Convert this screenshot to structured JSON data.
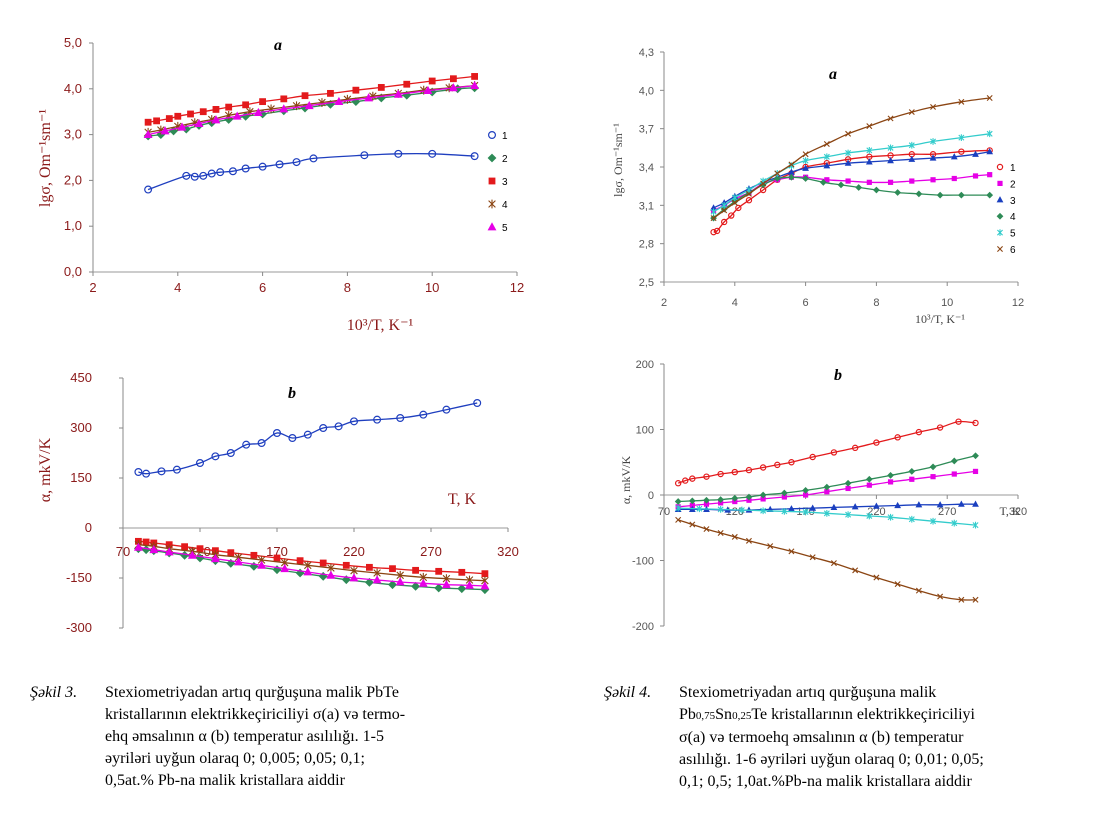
{
  "chart_data": [
    {
      "id": "fig3a",
      "type": "scatter",
      "panel": "a",
      "ylabel": "lgσ, Om⁻¹sm⁻¹",
      "xlabel": "10³/T, K⁻¹",
      "xlim": [
        2,
        12
      ],
      "ylim": [
        0,
        5
      ],
      "xticks": [
        "2",
        "4",
        "6",
        "8",
        "10",
        "12"
      ],
      "yticks": [
        "0,0",
        "1,0",
        "2,0",
        "3,0",
        "4,0",
        "5,0"
      ],
      "legend_position": "right",
      "series": [
        {
          "name": "1",
          "color": "#1f3fbf",
          "marker": "circle-open",
          "x": [
            3.3,
            4.2,
            4.4,
            4.6,
            4.8,
            5.0,
            5.3,
            5.6,
            6.0,
            6.4,
            6.8,
            7.2,
            8.4,
            9.2,
            10.0,
            11.0
          ],
          "y": [
            1.8,
            2.1,
            2.08,
            2.1,
            2.15,
            2.18,
            2.2,
            2.26,
            2.3,
            2.35,
            2.4,
            2.48,
            2.55,
            2.58,
            2.58,
            2.53
          ]
        },
        {
          "name": "2",
          "color": "#2e8b57",
          "marker": "diamond",
          "x": [
            3.3,
            3.6,
            3.9,
            4.2,
            4.5,
            4.8,
            5.2,
            5.6,
            6.0,
            6.5,
            7.0,
            7.6,
            8.2,
            8.8,
            9.4,
            10.0,
            10.6,
            11.0
          ],
          "y": [
            2.97,
            3.0,
            3.08,
            3.12,
            3.2,
            3.26,
            3.33,
            3.4,
            3.45,
            3.52,
            3.58,
            3.66,
            3.72,
            3.8,
            3.86,
            3.93,
            4.0,
            4.02
          ]
        },
        {
          "name": "3",
          "color": "#e31a1c",
          "marker": "square",
          "x": [
            3.3,
            3.5,
            3.8,
            4.0,
            4.3,
            4.6,
            4.9,
            5.2,
            5.6,
            6.0,
            6.5,
            7.0,
            7.6,
            8.2,
            8.8,
            9.4,
            10.0,
            10.5,
            11.0
          ],
          "y": [
            3.27,
            3.3,
            3.35,
            3.4,
            3.45,
            3.5,
            3.55,
            3.6,
            3.65,
            3.72,
            3.78,
            3.85,
            3.9,
            3.97,
            4.03,
            4.1,
            4.17,
            4.22,
            4.27
          ]
        },
        {
          "name": "4",
          "color": "#8b4513",
          "marker": "asterisk",
          "x": [
            3.3,
            3.6,
            4.0,
            4.4,
            4.8,
            5.2,
            5.7,
            6.2,
            6.8,
            7.4,
            8.0,
            8.6,
            9.2,
            9.8,
            10.4,
            11.0
          ],
          "y": [
            3.05,
            3.1,
            3.18,
            3.26,
            3.33,
            3.42,
            3.5,
            3.56,
            3.63,
            3.7,
            3.77,
            3.84,
            3.9,
            3.97,
            4.02,
            4.07
          ]
        },
        {
          "name": "5",
          "color": "#e600e6",
          "marker": "triangle",
          "x": [
            3.3,
            3.7,
            4.1,
            4.5,
            4.9,
            5.4,
            5.9,
            6.5,
            7.1,
            7.8,
            8.5,
            9.2,
            9.9,
            10.5,
            11.0
          ],
          "y": [
            3.0,
            3.08,
            3.16,
            3.24,
            3.32,
            3.4,
            3.48,
            3.56,
            3.63,
            3.72,
            3.8,
            3.88,
            3.96,
            4.02,
            4.07
          ]
        }
      ]
    },
    {
      "id": "fig3b",
      "type": "scatter",
      "panel": "b",
      "ylabel": "α, mkV/K",
      "xlabel": "T, K",
      "xlim": [
        70,
        320
      ],
      "ylim": [
        -300,
        450
      ],
      "xticks": [
        "70",
        "120",
        "170",
        "220",
        "270",
        "320"
      ],
      "yticks": [
        "-300",
        "-150",
        "0",
        "150",
        "300",
        "450"
      ],
      "series": [
        {
          "name": "1",
          "color": "#1f3fbf",
          "marker": "circle-open",
          "x": [
            80,
            85,
            95,
            105,
            120,
            130,
            140,
            150,
            160,
            170,
            180,
            190,
            200,
            210,
            220,
            235,
            250,
            265,
            280,
            300
          ],
          "y": [
            168,
            163,
            170,
            175,
            195,
            215,
            225,
            250,
            255,
            285,
            270,
            280,
            300,
            305,
            320,
            325,
            330,
            340,
            355,
            375
          ]
        },
        {
          "name": "2",
          "color": "#2e8b57",
          "marker": "diamond",
          "x": [
            80,
            85,
            90,
            100,
            110,
            120,
            130,
            140,
            155,
            170,
            185,
            200,
            215,
            230,
            245,
            260,
            275,
            290,
            305
          ],
          "y": [
            -62,
            -65,
            -68,
            -75,
            -82,
            -90,
            -98,
            -106,
            -115,
            -125,
            -135,
            -145,
            -155,
            -163,
            -170,
            -175,
            -180,
            -182,
            -185
          ]
        },
        {
          "name": "3",
          "color": "#e31a1c",
          "marker": "square",
          "x": [
            80,
            85,
            90,
            100,
            110,
            120,
            130,
            140,
            155,
            170,
            185,
            200,
            215,
            230,
            245,
            260,
            275,
            290,
            305
          ],
          "y": [
            -40,
            -42,
            -45,
            -50,
            -56,
            -62,
            -68,
            -74,
            -82,
            -90,
            -98,
            -105,
            -112,
            -118,
            -122,
            -127,
            -130,
            -133,
            -137
          ]
        },
        {
          "name": "4",
          "color": "#8b4513",
          "marker": "asterisk",
          "x": [
            80,
            90,
            100,
            115,
            130,
            145,
            160,
            175,
            190,
            205,
            220,
            235,
            250,
            265,
            280,
            295,
            305
          ],
          "y": [
            -50,
            -55,
            -62,
            -70,
            -80,
            -88,
            -96,
            -104,
            -112,
            -120,
            -128,
            -135,
            -142,
            -148,
            -152,
            -156,
            -158
          ]
        },
        {
          "name": "5",
          "color": "#e600e6",
          "marker": "triangle",
          "x": [
            80,
            90,
            100,
            115,
            130,
            145,
            160,
            175,
            190,
            205,
            220,
            235,
            250,
            265,
            280,
            295,
            305
          ],
          "y": [
            -58,
            -65,
            -72,
            -82,
            -92,
            -102,
            -112,
            -122,
            -132,
            -142,
            -150,
            -156,
            -162,
            -166,
            -170,
            -172,
            -174
          ]
        }
      ]
    },
    {
      "id": "fig4a",
      "type": "scatter",
      "panel": "a",
      "ylabel": "lgσ, Om⁻¹sm⁻¹",
      "xlabel": "10³/T, K⁻¹",
      "xlim": [
        2,
        12
      ],
      "ylim": [
        2.5,
        4.3
      ],
      "xticks": [
        "2",
        "4",
        "6",
        "8",
        "10",
        "12"
      ],
      "yticks": [
        "2,5",
        "2,8",
        "3,1",
        "3,4",
        "3,7",
        "4,0",
        "4,3"
      ],
      "legend_position": "right",
      "series": [
        {
          "name": "1",
          "color": "#e31a1c",
          "marker": "circle-open",
          "x": [
            3.4,
            3.5,
            3.7,
            3.9,
            4.1,
            4.4,
            4.8,
            5.2,
            5.6,
            6.0,
            6.6,
            7.2,
            7.8,
            8.4,
            9.0,
            9.6,
            10.4,
            11.2
          ],
          "y": [
            2.89,
            2.9,
            2.97,
            3.02,
            3.08,
            3.14,
            3.22,
            3.3,
            3.35,
            3.4,
            3.43,
            3.46,
            3.48,
            3.49,
            3.5,
            3.5,
            3.52,
            3.53
          ]
        },
        {
          "name": "2",
          "color": "#e600e6",
          "marker": "square",
          "x": [
            3.4,
            3.7,
            4.0,
            4.4,
            4.8,
            5.2,
            5.6,
            6.0,
            6.6,
            7.2,
            7.8,
            8.4,
            9.0,
            9.6,
            10.2,
            10.8,
            11.2
          ],
          "y": [
            3.06,
            3.1,
            3.15,
            3.2,
            3.27,
            3.3,
            3.32,
            3.32,
            3.3,
            3.29,
            3.28,
            3.28,
            3.29,
            3.3,
            3.31,
            3.33,
            3.34
          ]
        },
        {
          "name": "3",
          "color": "#1a3fbf",
          "marker": "triangle",
          "x": [
            3.4,
            3.7,
            4.0,
            4.4,
            4.8,
            5.2,
            5.6,
            6.0,
            6.6,
            7.2,
            7.8,
            8.4,
            9.0,
            9.6,
            10.2,
            10.8,
            11.2
          ],
          "y": [
            3.08,
            3.12,
            3.17,
            3.23,
            3.28,
            3.32,
            3.36,
            3.39,
            3.41,
            3.43,
            3.44,
            3.45,
            3.46,
            3.47,
            3.48,
            3.5,
            3.52
          ]
        },
        {
          "name": "4",
          "color": "#2e8b57",
          "marker": "diamond",
          "x": [
            3.4,
            3.7,
            4.0,
            4.4,
            4.8,
            5.2,
            5.6,
            6.0,
            6.5,
            7.0,
            7.5,
            8.0,
            8.6,
            9.2,
            9.8,
            10.4,
            11.2
          ],
          "y": [
            3.0,
            3.07,
            3.13,
            3.2,
            3.26,
            3.31,
            3.32,
            3.31,
            3.28,
            3.26,
            3.24,
            3.22,
            3.2,
            3.19,
            3.18,
            3.18,
            3.18
          ]
        },
        {
          "name": "5",
          "color": "#33cccc",
          "marker": "asterisk",
          "x": [
            3.4,
            3.7,
            4.0,
            4.4,
            4.8,
            5.2,
            5.6,
            6.0,
            6.6,
            7.2,
            7.8,
            8.4,
            9.0,
            9.6,
            10.4,
            11.2
          ],
          "y": [
            3.05,
            3.1,
            3.16,
            3.22,
            3.29,
            3.35,
            3.41,
            3.45,
            3.48,
            3.51,
            3.53,
            3.55,
            3.57,
            3.6,
            3.63,
            3.66
          ]
        },
        {
          "name": "6",
          "color": "#8b4513",
          "marker": "cross",
          "x": [
            3.4,
            3.7,
            4.0,
            4.4,
            4.8,
            5.2,
            5.6,
            6.0,
            6.6,
            7.2,
            7.8,
            8.4,
            9.0,
            9.6,
            10.4,
            11.2
          ],
          "y": [
            3.0,
            3.06,
            3.12,
            3.19,
            3.27,
            3.35,
            3.42,
            3.5,
            3.58,
            3.66,
            3.72,
            3.78,
            3.83,
            3.87,
            3.91,
            3.94
          ]
        }
      ]
    },
    {
      "id": "fig4b",
      "type": "scatter",
      "panel": "b",
      "ylabel": "α, mkV/K",
      "xlabel": "T, K",
      "xlim": [
        70,
        320
      ],
      "ylim": [
        -200,
        200
      ],
      "xticks": [
        "70",
        "120",
        "170",
        "220",
        "270",
        "320"
      ],
      "yticks": [
        "-200",
        "-100",
        "0",
        "100",
        "200"
      ],
      "series": [
        {
          "name": "1",
          "color": "#e31a1c",
          "marker": "circle-open",
          "x": [
            80,
            85,
            90,
            100,
            110,
            120,
            130,
            140,
            150,
            160,
            175,
            190,
            205,
            220,
            235,
            250,
            265,
            278,
            290
          ],
          "y": [
            18,
            22,
            25,
            28,
            32,
            35,
            38,
            42,
            46,
            50,
            58,
            65,
            72,
            80,
            88,
            96,
            103,
            112,
            110
          ]
        },
        {
          "name": "2",
          "color": "#e600e6",
          "marker": "square",
          "x": [
            80,
            90,
            100,
            110,
            120,
            130,
            140,
            155,
            170,
            185,
            200,
            215,
            230,
            245,
            260,
            275,
            290
          ],
          "y": [
            -18,
            -16,
            -14,
            -12,
            -10,
            -8,
            -6,
            -3,
            0,
            5,
            10,
            15,
            20,
            24,
            28,
            32,
            36
          ]
        },
        {
          "name": "3",
          "color": "#1a3fbf",
          "marker": "triangle",
          "x": [
            80,
            90,
            100,
            115,
            130,
            145,
            160,
            175,
            190,
            205,
            220,
            235,
            250,
            265,
            280,
            290
          ],
          "y": [
            -22,
            -22,
            -22,
            -23,
            -23,
            -22,
            -21,
            -20,
            -19,
            -18,
            -17,
            -16,
            -15,
            -15,
            -14,
            -14
          ]
        },
        {
          "name": "4",
          "color": "#2e8b57",
          "marker": "diamond",
          "x": [
            80,
            90,
            100,
            110,
            120,
            130,
            140,
            155,
            170,
            185,
            200,
            215,
            230,
            245,
            260,
            275,
            290
          ],
          "y": [
            -10,
            -9,
            -8,
            -7,
            -5,
            -3,
            0,
            3,
            7,
            12,
            18,
            24,
            30,
            36,
            43,
            52,
            60
          ]
        },
        {
          "name": "5",
          "color": "#33cccc",
          "marker": "asterisk",
          "x": [
            80,
            95,
            110,
            125,
            140,
            155,
            170,
            185,
            200,
            215,
            230,
            245,
            260,
            275,
            290
          ],
          "y": [
            -20,
            -21,
            -22,
            -23,
            -24,
            -25,
            -26,
            -28,
            -30,
            -32,
            -34,
            -37,
            -40,
            -43,
            -46
          ]
        },
        {
          "name": "6",
          "color": "#8b4513",
          "marker": "cross",
          "x": [
            80,
            90,
            100,
            110,
            120,
            130,
            145,
            160,
            175,
            190,
            205,
            220,
            235,
            250,
            265,
            280,
            290
          ],
          "y": [
            -38,
            -45,
            -52,
            -58,
            -64,
            -70,
            -78,
            -86,
            -95,
            -104,
            -115,
            -126,
            -136,
            -146,
            -155,
            -160,
            -160
          ]
        }
      ]
    }
  ],
  "captions": {
    "fig3": {
      "label": "Şəkil 3.",
      "lines": [
        "Stexiometriyadan artıq  qurğuşuna malik PbTe",
        "kristallarının elektrikkeçiriciliyi σ(a) və   termo-",
        "ehq əmsalının α (b) temperatur asılılığı. 1-5",
        "əyriləri uyğun olaraq 0; 0,005; 0,05; 0,1;",
        "0,5at.%  Pb-na malik kristallara aiddir"
      ]
    },
    "fig4": {
      "label": "Şəkil 4.",
      "line1": "Stexiometriyadan artıq  qurğuşuna malik",
      "line2_a": "Pb",
      "line2_sub1": "0,75",
      "line2_b": "Sn",
      "line2_sub2": "0,25",
      "line2_c": "Te kristallarının elektrikkeçiriciliyi",
      "lines_rest": [
        "σ(a) və termoehq əmsalının α (b) temperatur",
        "asılılığı. 1-6 əyriləri uyğun olaraq 0; 0,01; 0,05;",
        "0,1; 0,5; 1,0at.%Pb-na malik kristallara aiddir"
      ]
    }
  }
}
